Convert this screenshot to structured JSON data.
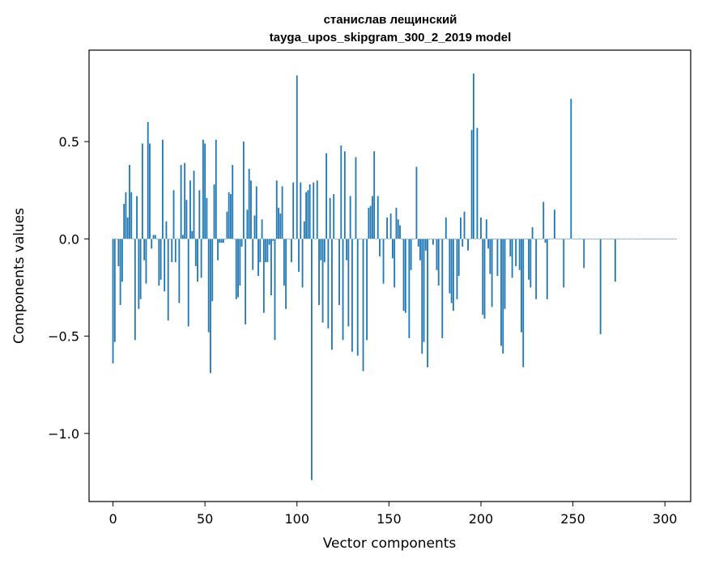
{
  "chart_data": {
    "type": "bar",
    "title": "станислав лещинский",
    "subtitle": "tayga_upos_skipgram_300_2_2019 model",
    "xlabel": "Vector components",
    "ylabel": "Components values",
    "xlim": [
      -13,
      314
    ],
    "ylim": [
      -1.35,
      0.97
    ],
    "xticks": [
      0,
      50,
      100,
      150,
      200,
      250,
      300
    ],
    "yticks": [
      -1.0,
      -0.5,
      0.0,
      0.5
    ],
    "ytick_labels": [
      "−1.0",
      "−0.5",
      "0.0",
      "0.5"
    ],
    "grid": false,
    "bar_color": "#1f77b4",
    "values": [
      -0.64,
      -0.53,
      0.0,
      -0.14,
      -0.34,
      -0.22,
      0.18,
      0.24,
      0.11,
      0.38,
      0.24,
      0.0,
      -0.52,
      0.22,
      -0.36,
      -0.31,
      0.49,
      -0.11,
      -0.23,
      0.6,
      0.49,
      -0.05,
      0.02,
      0.02,
      0.0,
      -0.24,
      -0.21,
      0.51,
      -0.27,
      0.09,
      -0.42,
      0.0,
      -0.12,
      0.25,
      -0.12,
      0.0,
      -0.33,
      0.38,
      0.02,
      0.39,
      0.2,
      -0.45,
      0.3,
      0.04,
      0.35,
      -0.14,
      -0.22,
      0.25,
      -0.2,
      0.51,
      0.49,
      0.21,
      -0.48,
      -0.69,
      -0.32,
      0.28,
      0.51,
      -0.11,
      -0.02,
      -0.02,
      -0.02,
      0.0,
      0.14,
      0.24,
      0.23,
      0.38,
      0.0,
      -0.31,
      -0.3,
      -0.24,
      -0.04,
      0.5,
      -0.44,
      0.15,
      0.36,
      0.3,
      -0.16,
      0.12,
      0.27,
      -0.19,
      -0.12,
      0.1,
      -0.38,
      -0.12,
      -0.12,
      -0.03,
      -0.29,
      -0.01,
      -0.52,
      0.3,
      0.16,
      0.13,
      0.27,
      -0.24,
      -0.36,
      0.0,
      0.0,
      -0.12,
      0.29,
      0.0,
      0.84,
      -0.17,
      0.29,
      -0.25,
      0.09,
      0.24,
      0.25,
      0.28,
      -1.24,
      0.29,
      0.0,
      0.3,
      -0.34,
      -0.11,
      -0.43,
      -0.12,
      0.44,
      -0.46,
      0.21,
      -0.57,
      0.23,
      0.0,
      0.0,
      -0.34,
      0.48,
      -0.52,
      0.45,
      -0.11,
      -0.45,
      0.22,
      -0.58,
      0.0,
      0.42,
      -0.6,
      0.0,
      0.0,
      -0.68,
      0.0,
      -0.52,
      0.16,
      0.17,
      0.22,
      0.45,
      0.0,
      0.22,
      -0.09,
      0.0,
      -0.23,
      0.0,
      0.11,
      0.0,
      0.13,
      -0.1,
      -0.25,
      0.16,
      0.1,
      0.07,
      0.0,
      -0.37,
      -0.38,
      0.0,
      -0.51,
      -0.16,
      0.0,
      0.0,
      0.37,
      -0.04,
      -0.11,
      -0.59,
      -0.53,
      -0.06,
      -0.66,
      0.0,
      0.0,
      -0.03,
      0.0,
      -0.16,
      -0.24,
      0.0,
      -0.51,
      0.0,
      0.11,
      0.0,
      -0.28,
      -0.33,
      -0.37,
      0.0,
      -0.31,
      -0.19,
      0.11,
      -0.04,
      0.14,
      0.0,
      -0.06,
      0.0,
      0.56,
      0.85,
      0.0,
      0.57,
      0.0,
      0.11,
      -0.39,
      -0.41,
      0.1,
      -0.05,
      -0.18,
      -0.35,
      0.0,
      0.0,
      -0.19,
      0.0,
      -0.55,
      -0.59,
      -0.36,
      0.0,
      0.0,
      -0.09,
      -0.2,
      0.0,
      -0.14,
      0.0,
      -0.16,
      -0.48,
      -0.66,
      0.0,
      0.0,
      -0.21,
      -0.25,
      0.06,
      0.0,
      -0.31,
      0.0,
      0.0,
      0.0,
      0.19,
      -0.02,
      -0.31,
      0.0,
      0.0,
      0.0,
      0.15,
      0.0,
      0.0,
      0.0,
      0.0,
      -0.25,
      0.0,
      0.0,
      0.0,
      0.72,
      0.0,
      0.0,
      0.0,
      0.0,
      0.0,
      0.0,
      -0.15,
      0.0,
      0.0,
      0.0,
      0.0,
      0.0,
      0.0,
      0.0,
      0.0,
      -0.49,
      0.0,
      0.0,
      0.0,
      0.0,
      0.0,
      0.0,
      0.0,
      -0.22,
      0.0,
      0.0,
      0.0,
      0.0,
      0.0,
      0.0,
      0.0,
      0.0,
      0.0,
      0.0,
      0.0,
      0.0,
      0.0,
      0.0,
      0.0,
      0.0,
      0.0,
      0.0,
      0.0,
      0.0,
      0.0,
      0.0,
      0.0,
      0.0,
      0.0,
      0.0,
      0.0,
      0.0,
      0.0,
      0.0,
      0.0,
      0.0,
      0.0
    ]
  }
}
